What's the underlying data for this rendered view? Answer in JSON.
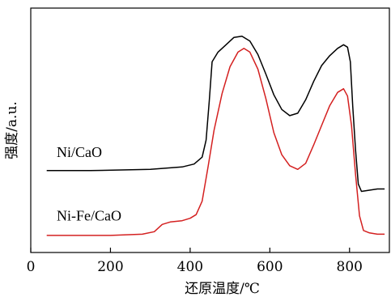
{
  "chart_data": {
    "type": "line",
    "xlabel": "还原温度/℃",
    "ylabel": "强度/a.u.",
    "xlim": [
      0,
      900
    ],
    "ylim": [
      0,
      100
    ],
    "x_ticks": [
      0,
      200,
      400,
      600,
      800
    ],
    "x_tick_labels": [
      "0",
      "200",
      "400",
      "600",
      "800"
    ],
    "y_ticks_shown": false,
    "legend": "none",
    "series": [
      {
        "name": "Ni/CaO",
        "color": "#000000",
        "points": [
          [
            40,
            33.5
          ],
          [
            150,
            33.5
          ],
          [
            300,
            34.0
          ],
          [
            380,
            35.0
          ],
          [
            410,
            36.2
          ],
          [
            430,
            39.0
          ],
          [
            440,
            46.0
          ],
          [
            448,
            62.0
          ],
          [
            455,
            78.0
          ],
          [
            470,
            82.0
          ],
          [
            490,
            85.0
          ],
          [
            510,
            88.0
          ],
          [
            530,
            88.5
          ],
          [
            550,
            86.5
          ],
          [
            570,
            81.0
          ],
          [
            590,
            73.0
          ],
          [
            610,
            64.5
          ],
          [
            630,
            58.5
          ],
          [
            650,
            56.0
          ],
          [
            670,
            57.0
          ],
          [
            690,
            62.5
          ],
          [
            710,
            70.0
          ],
          [
            730,
            76.5
          ],
          [
            750,
            80.5
          ],
          [
            770,
            83.5
          ],
          [
            785,
            85.0
          ],
          [
            795,
            84.0
          ],
          [
            802,
            78.0
          ],
          [
            808,
            60.0
          ],
          [
            815,
            42.0
          ],
          [
            822,
            28.0
          ],
          [
            830,
            25.0
          ],
          [
            850,
            25.5
          ],
          [
            870,
            26.0
          ],
          [
            888,
            26.0
          ]
        ]
      },
      {
        "name": "Ni-Fe/CaO",
        "color": "#d42020",
        "points": [
          [
            40,
            7.0
          ],
          [
            200,
            7.0
          ],
          [
            280,
            7.5
          ],
          [
            310,
            8.5
          ],
          [
            330,
            11.5
          ],
          [
            350,
            12.5
          ],
          [
            380,
            13.0
          ],
          [
            400,
            14.0
          ],
          [
            415,
            15.5
          ],
          [
            430,
            21.0
          ],
          [
            445,
            35.0
          ],
          [
            460,
            50.0
          ],
          [
            480,
            65.0
          ],
          [
            500,
            76.0
          ],
          [
            520,
            82.0
          ],
          [
            535,
            83.5
          ],
          [
            550,
            82.0
          ],
          [
            570,
            75.0
          ],
          [
            590,
            63.0
          ],
          [
            610,
            49.0
          ],
          [
            630,
            40.0
          ],
          [
            650,
            35.5
          ],
          [
            670,
            34.0
          ],
          [
            690,
            36.5
          ],
          [
            710,
            44.0
          ],
          [
            730,
            52.0
          ],
          [
            750,
            60.0
          ],
          [
            770,
            65.5
          ],
          [
            785,
            67.0
          ],
          [
            795,
            64.0
          ],
          [
            805,
            52.0
          ],
          [
            815,
            32.0
          ],
          [
            825,
            15.0
          ],
          [
            835,
            9.0
          ],
          [
            850,
            8.0
          ],
          [
            870,
            7.5
          ],
          [
            888,
            7.5
          ]
        ]
      }
    ],
    "annotations": [
      {
        "text": "Ni/CaO",
        "x": 65,
        "y": 39
      },
      {
        "text": "Ni-Fe/CaO",
        "x": 65,
        "y": 13
      }
    ]
  }
}
